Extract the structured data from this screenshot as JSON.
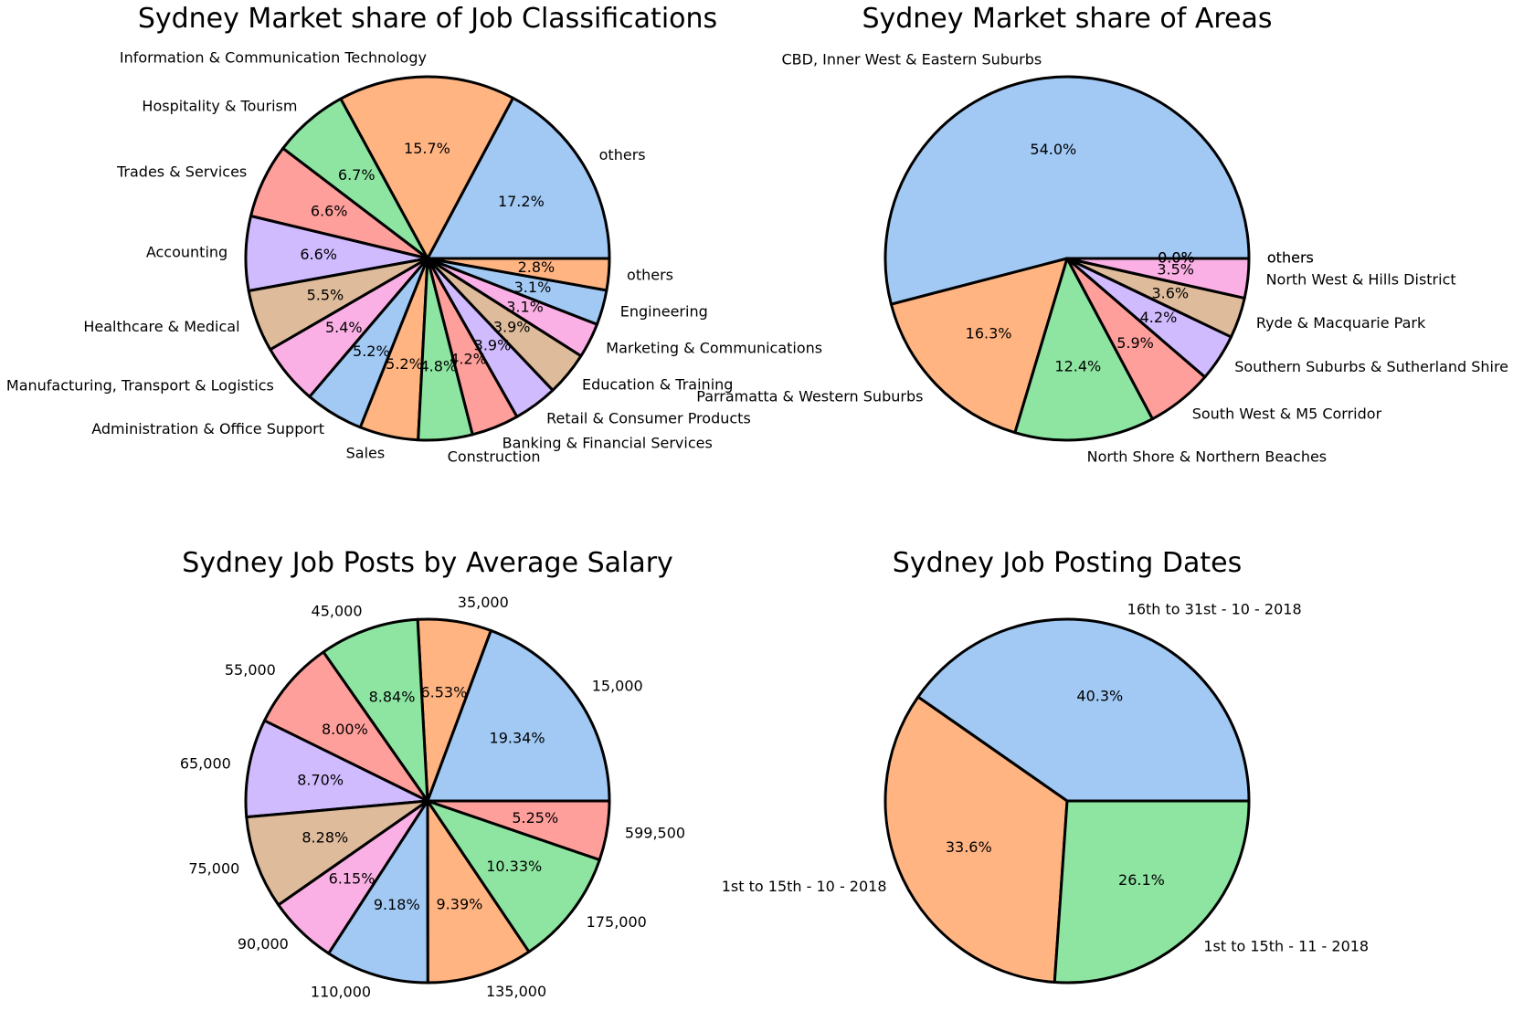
{
  "colors": [
    "#a1c9f4",
    "#ffb482",
    "#8de5a1",
    "#ff9f9b",
    "#d0bbff",
    "#debb9b",
    "#fab0e4",
    "#a1c9f4",
    "#ffb482",
    "#8de5a1",
    "#ff9f9b",
    "#d0bbff",
    "#debb9b",
    "#fab0e4",
    "#a1c9f4",
    "#ffb482"
  ],
  "chart_data": [
    {
      "type": "pie",
      "title": "Sydney Market share of Job Classifications",
      "categories": [
        "others",
        "Information & Communication Technology",
        "Hospitality & Tourism",
        "Trades & Services",
        "Accounting",
        "Healthcare & Medical",
        "Manufacturing, Transport & Logistics",
        "Administration & Office Support",
        "Sales",
        "Construction",
        "Banking & Financial Services",
        "Retail & Consumer Products",
        "Education & Training",
        "Marketing & Communications",
        "Engineering",
        "others"
      ],
      "values": [
        17.2,
        15.7,
        6.7,
        6.6,
        6.6,
        5.5,
        5.4,
        5.2,
        5.2,
        4.8,
        4.2,
        3.9,
        3.9,
        3.1,
        3.1,
        2.8
      ],
      "pct_labels": [
        "17.2%",
        "15.7%",
        "6.7%",
        "6.6%",
        "6.6%",
        "5.5%",
        "5.4%",
        "5.2%",
        "5.2%",
        "4.8%",
        "4.2%",
        "3.9%",
        "3.9%",
        "3.1%",
        "3.1%",
        "2.8%"
      ]
    },
    {
      "type": "pie",
      "title": "Sydney Market share of Areas",
      "categories": [
        "CBD, Inner West & Eastern Suburbs",
        "Parramatta & Western Suburbs",
        "North Shore & Northern Beaches",
        "South West & M5 Corridor",
        "Southern Suburbs & Sutherland Shire",
        "Ryde & Macquarie Park",
        "North West & Hills District",
        "others",
        "others"
      ],
      "values": [
        54.0,
        16.3,
        12.4,
        5.9,
        4.2,
        3.6,
        3.5,
        0.0,
        0.0
      ],
      "pct_labels": [
        "54.0%",
        "16.3%",
        "12.4%",
        "5.9%",
        "4.2%",
        "3.6%",
        "3.5%",
        "0.0%",
        "0.0%"
      ]
    },
    {
      "type": "pie",
      "title": "Sydney Job Posts by Average Salary",
      "categories": [
        "15,000",
        "35,000",
        "45,000",
        "55,000",
        "65,000",
        "75,000",
        "90,000",
        "110,000",
        "135,000",
        "175,000",
        "599,500"
      ],
      "values": [
        19.34,
        6.53,
        8.84,
        8.0,
        8.7,
        8.28,
        6.15,
        9.18,
        9.39,
        10.33,
        5.25
      ],
      "pct_labels": [
        "19.34%",
        "6.53%",
        "8.84%",
        "8.00%",
        "8.70%",
        "8.28%",
        "6.15%",
        "9.18%",
        "9.39%",
        "10.33%",
        "5.25%"
      ]
    },
    {
      "type": "pie",
      "title": "Sydney Job Posting Dates",
      "categories": [
        "16th to 31st - 10 - 2018",
        "1st to 15th - 10 - 2018",
        "1st to 15th - 11 - 2018"
      ],
      "values": [
        40.3,
        33.6,
        26.1
      ],
      "pct_labels": [
        "40.3%",
        "33.6%",
        "26.1%"
      ]
    }
  ]
}
